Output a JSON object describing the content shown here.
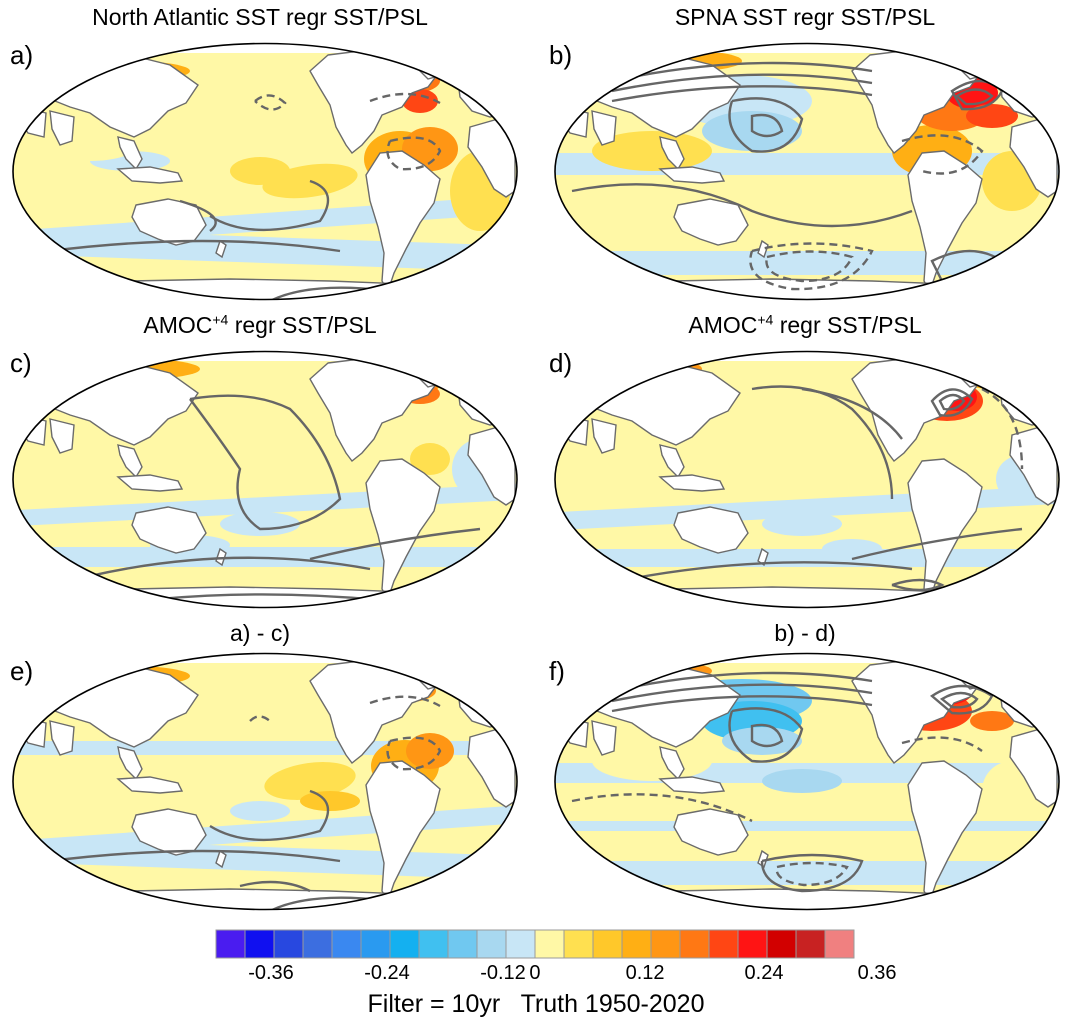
{
  "panels": [
    {
      "letter": "a)",
      "title_main": "North Atlantic SST regr SST/PSL",
      "title_sup": "",
      "title_rest": ""
    },
    {
      "letter": "b)",
      "title_main": "SPNA SST regr SST/PSL",
      "title_sup": "",
      "title_rest": ""
    },
    {
      "letter": "c)",
      "title_main": "AMOC",
      "title_sup": "+4",
      "title_rest": " regr SST/PSL"
    },
    {
      "letter": "d)",
      "title_main": "AMOC",
      "title_sup": "+4",
      "title_rest": " regr SST/PSL"
    },
    {
      "letter": "e)",
      "title_main": "a) - c)",
      "title_sup": "",
      "title_rest": ""
    },
    {
      "letter": "f)",
      "title_main": "b) - d)",
      "title_sup": "",
      "title_rest": ""
    }
  ],
  "colorbar": {
    "colors": [
      "#4a1cf0",
      "#1010f0",
      "#2848e0",
      "#3c6ee0",
      "#3a88f0",
      "#2a9af0",
      "#14b0f0",
      "#40c0f0",
      "#70c8f0",
      "#a8d8f0",
      "#c8e6f6",
      "#fff8a6",
      "#ffe050",
      "#ffc82a",
      "#ffaf14",
      "#ff9614",
      "#ff7814",
      "#ff4614",
      "#ff1414",
      "#d20000",
      "#c82222",
      "#f08080"
    ],
    "tick_labels": [
      "-0.36",
      "-0.24",
      "-0.12",
      "0",
      "0.12",
      "0.24",
      "0.36"
    ]
  },
  "footer": "Filter = 10yr   Truth 1950-2020"
}
